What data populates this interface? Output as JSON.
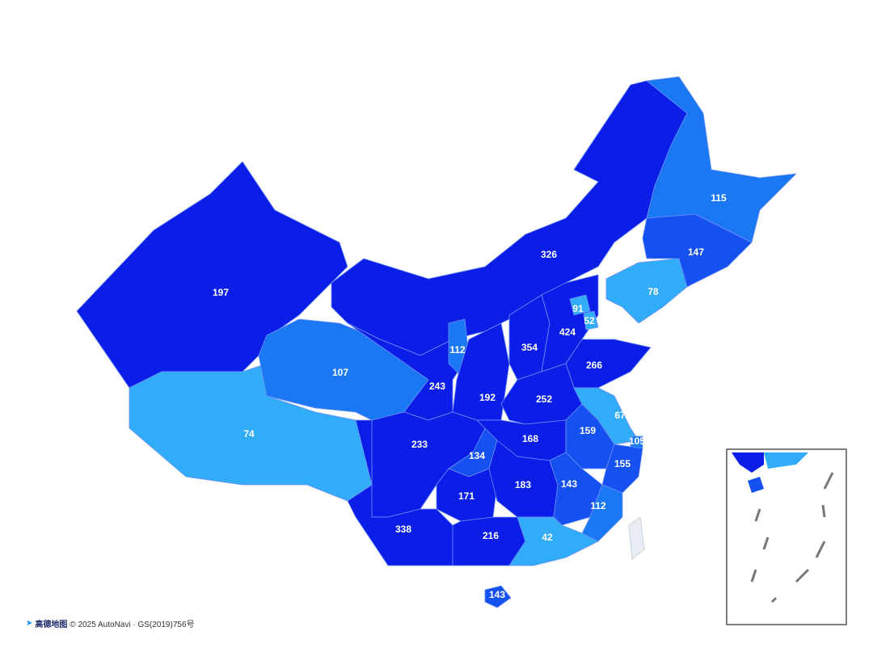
{
  "colors": {
    "tier1": "#0a1ee8",
    "tier2": "#1550f0",
    "tier3": "#1a78f5",
    "tier4": "#30acf8",
    "taiwan": "#e8eef3",
    "border": "#6f8ff7"
  },
  "regions": [
    {
      "value": "197",
      "tier": "tier1"
    },
    {
      "value": "74",
      "tier": "tier4"
    },
    {
      "value": "107",
      "tier": "tier3"
    },
    {
      "value": "326",
      "tier": "tier1"
    },
    {
      "value": "243",
      "tier": "tier1"
    },
    {
      "value": "112",
      "tier": "tier3"
    },
    {
      "value": "192",
      "tier": "tier1"
    },
    {
      "value": "354",
      "tier": "tier1"
    },
    {
      "value": "424",
      "tier": "tier1"
    },
    {
      "value": "91",
      "tier": "tier4"
    },
    {
      "value": "52",
      "tier": "tier4"
    },
    {
      "value": "78",
      "tier": "tier4"
    },
    {
      "value": "147",
      "tier": "tier2"
    },
    {
      "value": "115",
      "tier": "tier3"
    },
    {
      "value": "266",
      "tier": "tier1"
    },
    {
      "value": "252",
      "tier": "tier1"
    },
    {
      "value": "67",
      "tier": "tier4"
    },
    {
      "value": "159",
      "tier": "tier2"
    },
    {
      "value": "105",
      "tier": "tier3"
    },
    {
      "value": "155",
      "tier": "tier2"
    },
    {
      "value": "168",
      "tier": "tier1"
    },
    {
      "value": "134",
      "tier": "tier2"
    },
    {
      "value": "233",
      "tier": "tier1"
    },
    {
      "value": "171",
      "tier": "tier1"
    },
    {
      "value": "183",
      "tier": "tier1"
    },
    {
      "value": "143",
      "tier": "tier2"
    },
    {
      "value": "112",
      "tier": "tier3"
    },
    {
      "value": "338",
      "tier": "tier1"
    },
    {
      "value": "216",
      "tier": "tier1"
    },
    {
      "value": "42",
      "tier": "tier4"
    },
    {
      "value": "143",
      "tier": "tier2"
    }
  ],
  "attribution": {
    "logo_text": "高德地图",
    "copyright": "© 2025 AutoNavi · GS(2019)756号"
  }
}
